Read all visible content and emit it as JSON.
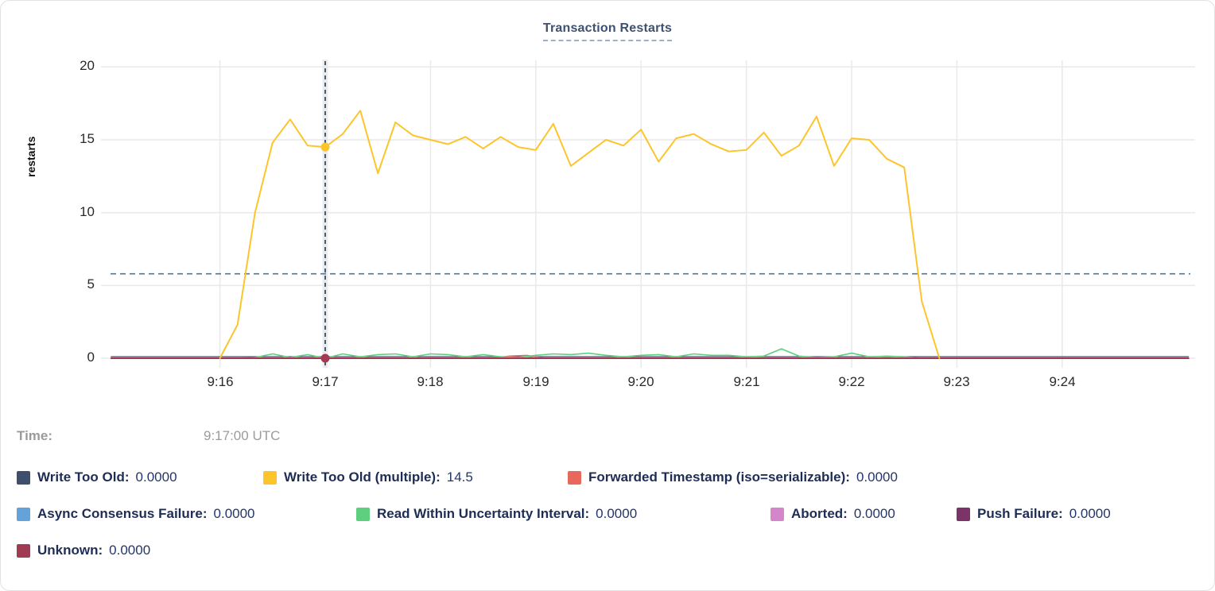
{
  "title": "Transaction Restarts",
  "tooltip": {
    "time_label": "Time:",
    "time_value": "9:17:00 UTC"
  },
  "legend": {
    "items": [
      {
        "label": "Write Too Old:",
        "value": "0.0000",
        "color": "#3e4e6c"
      },
      {
        "label": "Write Too Old (multiple):",
        "value": "14.5",
        "color": "#fcc52b"
      },
      {
        "label": "Forwarded Timestamp (iso=serializable):",
        "value": "0.0000",
        "color": "#e8685c"
      },
      {
        "label": "Async Consensus Failure:",
        "value": "0.0000",
        "color": "#63a3d9"
      },
      {
        "label": "Read Within Uncertainty Interval:",
        "value": "0.0000",
        "color": "#5ecf7e"
      },
      {
        "label": "Aborted:",
        "value": "0.0000",
        "color": "#d585c9"
      },
      {
        "label": "Push Failure:",
        "value": "0.0000",
        "color": "#7a3468"
      },
      {
        "label": "Unknown:",
        "value": "0.0000",
        "color": "#a23a52"
      }
    ]
  },
  "chart_data": {
    "type": "line",
    "title": "Transaction Restarts",
    "xlabel": "",
    "ylabel": "restarts",
    "ylim": [
      0,
      20
    ],
    "grid": true,
    "legend_position": "bottom",
    "x_unit": "seconds after 9:15:00 UTC",
    "yticks": [
      {
        "label": "20",
        "v": 20
      },
      {
        "label": "15",
        "v": 15
      },
      {
        "label": "10",
        "v": 10
      },
      {
        "label": "5",
        "v": 5
      },
      {
        "label": "0",
        "v": 0
      }
    ],
    "xticks": [
      {
        "label": "9:16",
        "t": 60
      },
      {
        "label": "9:17",
        "t": 120
      },
      {
        "label": "9:18",
        "t": 180
      },
      {
        "label": "9:19",
        "t": 240
      },
      {
        "label": "9:20",
        "t": 300
      },
      {
        "label": "9:21",
        "t": 360
      },
      {
        "label": "9:22",
        "t": 420
      },
      {
        "label": "9:23",
        "t": 480
      },
      {
        "label": "9:24",
        "t": 540
      }
    ],
    "threshold_line": {
      "value": 5.8,
      "style": "dashed",
      "color": "#54738f"
    },
    "crosshair": {
      "t": 120,
      "time": "9:17:00 UTC",
      "line_color": "#2f4e6e",
      "band_color": "#ececec"
    },
    "hover_points": [
      {
        "series": "Write Too Old (multiple)",
        "t": 120,
        "value": 14.5,
        "color": "#fcc52b"
      },
      {
        "series": "Unknown",
        "t": 120,
        "value": 0,
        "color": "#a23a52"
      }
    ],
    "series": [
      {
        "name": "Write Too Old",
        "color": "#3e4e6c",
        "width": 1.2,
        "dy": -2,
        "points": [
          [
            -2,
            0
          ],
          [
            612,
            0
          ]
        ]
      },
      {
        "name": "Async Consensus Failure",
        "color": "#63a3d9",
        "width": 1.2,
        "points": [
          [
            -2,
            0
          ],
          [
            612,
            0
          ]
        ]
      },
      {
        "name": "Aborted",
        "color": "#d585c9",
        "width": 1.2,
        "points": [
          [
            -2,
            0
          ],
          [
            612,
            0
          ]
        ]
      },
      {
        "name": "Push Failure",
        "color": "#7a3468",
        "width": 1.2,
        "points": [
          [
            -2,
            0
          ],
          [
            612,
            0
          ]
        ]
      },
      {
        "name": "Forwarded Timestamp (iso=serializable)",
        "color": "#e8685c",
        "width": 1.5,
        "points": [
          [
            -2,
            0
          ],
          [
            215,
            0
          ],
          [
            225,
            0.15
          ],
          [
            235,
            0.2
          ],
          [
            245,
            0
          ],
          [
            612,
            0
          ]
        ]
      },
      {
        "name": "Read Within Uncertainty Interval",
        "color": "#5ecf7e",
        "width": 1.6,
        "points": [
          [
            60,
            0
          ],
          [
            70,
            0
          ],
          [
            80,
            0.05
          ],
          [
            90,
            0.3
          ],
          [
            100,
            0.05
          ],
          [
            110,
            0.25
          ],
          [
            120,
            0
          ],
          [
            130,
            0.3
          ],
          [
            140,
            0.1
          ],
          [
            150,
            0.25
          ],
          [
            160,
            0.3
          ],
          [
            170,
            0.1
          ],
          [
            180,
            0.3
          ],
          [
            190,
            0.25
          ],
          [
            200,
            0.1
          ],
          [
            210,
            0.25
          ],
          [
            220,
            0.1
          ],
          [
            230,
            0.05
          ],
          [
            240,
            0.2
          ],
          [
            250,
            0.3
          ],
          [
            260,
            0.25
          ],
          [
            270,
            0.35
          ],
          [
            280,
            0.2
          ],
          [
            290,
            0.1
          ],
          [
            300,
            0.2
          ],
          [
            310,
            0.25
          ],
          [
            320,
            0.1
          ],
          [
            330,
            0.3
          ],
          [
            340,
            0.2
          ],
          [
            350,
            0.2
          ],
          [
            360,
            0.1
          ],
          [
            370,
            0.15
          ],
          [
            380,
            0.65
          ],
          [
            390,
            0.15
          ],
          [
            400,
            0.05
          ],
          [
            410,
            0.1
          ],
          [
            420,
            0.35
          ],
          [
            430,
            0.1
          ],
          [
            440,
            0.15
          ],
          [
            450,
            0.1
          ],
          [
            460,
            0
          ],
          [
            470,
            0
          ]
        ]
      },
      {
        "name": "Unknown",
        "color": "#a23a52",
        "width": 2,
        "points": [
          [
            -2,
            0
          ],
          [
            612,
            0
          ]
        ]
      },
      {
        "name": "Write Too Old (multiple)",
        "color": "#fcc52b",
        "width": 2,
        "points": [
          [
            60,
            0
          ],
          [
            70,
            2.3
          ],
          [
            80,
            10
          ],
          [
            90,
            14.8
          ],
          [
            100,
            16.4
          ],
          [
            110,
            14.6
          ],
          [
            120,
            14.5
          ],
          [
            130,
            15.4
          ],
          [
            140,
            17
          ],
          [
            150,
            12.7
          ],
          [
            160,
            16.2
          ],
          [
            170,
            15.3
          ],
          [
            180,
            15
          ],
          [
            190,
            14.7
          ],
          [
            200,
            15.2
          ],
          [
            210,
            14.4
          ],
          [
            220,
            15.2
          ],
          [
            230,
            14.5
          ],
          [
            240,
            14.3
          ],
          [
            250,
            16.1
          ],
          [
            260,
            13.2
          ],
          [
            270,
            14.1
          ],
          [
            280,
            15
          ],
          [
            290,
            14.6
          ],
          [
            300,
            15.7
          ],
          [
            310,
            13.5
          ],
          [
            320,
            15.1
          ],
          [
            330,
            15.4
          ],
          [
            340,
            14.7
          ],
          [
            350,
            14.2
          ],
          [
            360,
            14.3
          ],
          [
            370,
            15.5
          ],
          [
            380,
            13.9
          ],
          [
            390,
            14.6
          ],
          [
            400,
            16.6
          ],
          [
            410,
            13.2
          ],
          [
            420,
            15.1
          ],
          [
            430,
            15
          ],
          [
            440,
            13.7
          ],
          [
            450,
            13.1
          ],
          [
            460,
            3.9
          ],
          [
            470,
            0
          ]
        ]
      }
    ]
  }
}
